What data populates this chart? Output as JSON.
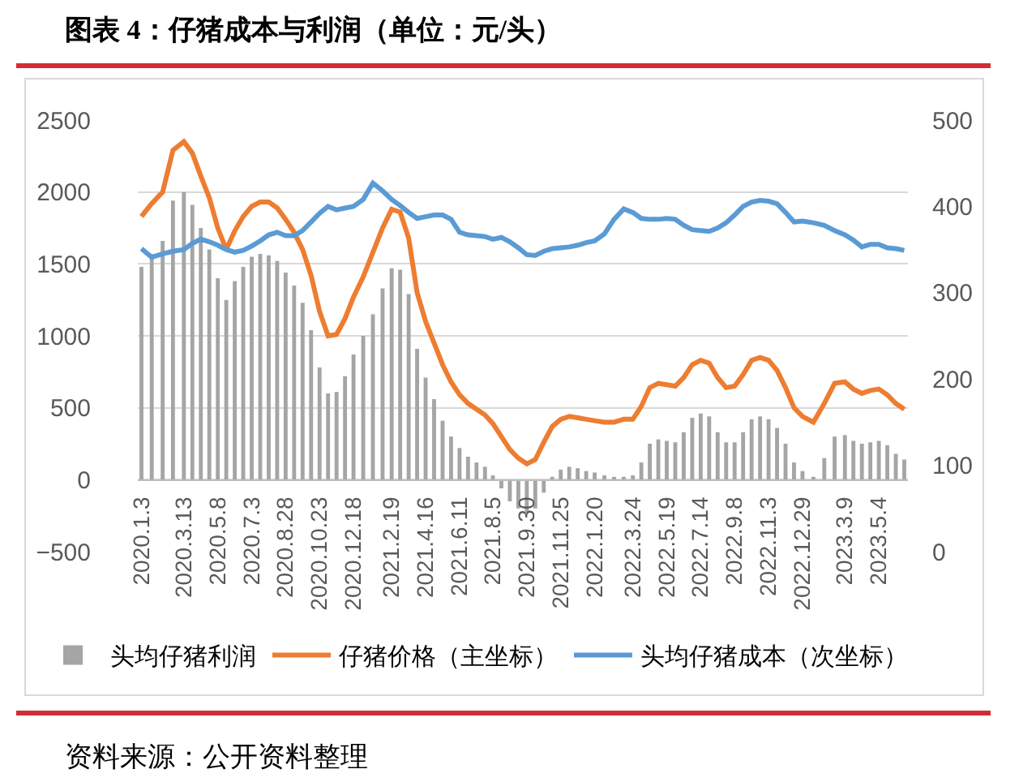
{
  "chart_data": {
    "type": "bar",
    "title": "图表 4：仔猪成本与利润（单位：元/头）",
    "annotations": [
      "资料来源：公开资料整理"
    ],
    "x": [
      "2020-01-03",
      "2020-01-20",
      "2020-02-07",
      "2020-02-24",
      "2020-03-13",
      "2020-03-27",
      "2020-04-10",
      "2020-04-24",
      "2020-05-08",
      "2020-05-22",
      "2020-06-05",
      "2020-06-19",
      "2020-07-03",
      "2020-07-17",
      "2020-07-31",
      "2020-08-14",
      "2020-08-28",
      "2020-09-11",
      "2020-09-25",
      "2020-10-09",
      "2020-10-23",
      "2020-11-06",
      "2020-11-20",
      "2020-12-04",
      "2020-12-18",
      "2021-01-03",
      "2021-01-19",
      "2021-02-04",
      "2021-02-19",
      "2021-03-05",
      "2021-03-19",
      "2021-04-02",
      "2021-04-16",
      "2021-04-30",
      "2021-05-14",
      "2021-05-28",
      "2021-06-11",
      "2021-06-25",
      "2021-07-09",
      "2021-07-23",
      "2021-08-05",
      "2021-08-19",
      "2021-09-02",
      "2021-09-16",
      "2021-09-30",
      "2021-10-14",
      "2021-10-28",
      "2021-11-11",
      "2021-11-25",
      "2021-12-09",
      "2021-12-23",
      "2022-01-06",
      "2022-01-20",
      "2022-02-05",
      "2022-02-21",
      "2022-03-09",
      "2022-03-24",
      "2022-04-07",
      "2022-04-21",
      "2022-05-05",
      "2022-05-19",
      "2022-06-02",
      "2022-06-16",
      "2022-06-30",
      "2022-07-14",
      "2022-07-28",
      "2022-08-11",
      "2022-08-25",
      "2022-09-08",
      "2022-09-22",
      "2022-10-06",
      "2022-10-20",
      "2022-11-03",
      "2022-11-17",
      "2022-12-01",
      "2022-12-15",
      "2022-12-29",
      "2023-01-16",
      "2023-02-03",
      "2023-02-20",
      "2023-03-09",
      "2023-03-23",
      "2023-04-06",
      "2023-04-20",
      "2023-05-04",
      "2023-05-18",
      "2023-06-01",
      "2023-06-15"
    ],
    "series": [
      {
        "name": "头均仔猪利润",
        "type": "bar",
        "color": "#a5a5a5",
        "values": [
          1480,
          1570,
          1660,
          1940,
          2000,
          1910,
          1750,
          1600,
          1400,
          1250,
          1380,
          1480,
          1550,
          1570,
          1560,
          1520,
          1440,
          1350,
          1230,
          1040,
          780,
          600,
          610,
          720,
          870,
          1000,
          1150,
          1330,
          1470,
          1460,
          1290,
          910,
          710,
          560,
          410,
          300,
          220,
          160,
          120,
          90,
          30,
          -60,
          -150,
          -200,
          -230,
          -200,
          -90,
          20,
          70,
          90,
          80,
          60,
          50,
          30,
          20,
          20,
          30,
          120,
          250,
          280,
          270,
          260,
          330,
          430,
          460,
          440,
          330,
          260,
          260,
          330,
          420,
          440,
          420,
          360,
          250,
          120,
          60,
          20,
          150,
          300,
          310,
          270,
          250,
          260,
          270,
          240,
          180,
          140
        ]
      },
      {
        "name": "仔猪价格（主坐标）",
        "type": "line",
        "color": "#ed7d31",
        "values": [
          1830,
          1920,
          2000,
          2290,
          2350,
          2270,
          2110,
          1960,
          1750,
          1600,
          1730,
          1830,
          1900,
          1930,
          1930,
          1890,
          1810,
          1720,
          1600,
          1420,
          1170,
          1000,
          1010,
          1120,
          1270,
          1410,
          1580,
          1750,
          1880,
          1860,
          1680,
          1300,
          1100,
          950,
          800,
          680,
          590,
          530,
          490,
          450,
          390,
          300,
          210,
          150,
          110,
          140,
          260,
          370,
          420,
          440,
          430,
          420,
          410,
          400,
          400,
          420,
          420,
          510,
          640,
          670,
          660,
          650,
          710,
          800,
          830,
          810,
          710,
          640,
          650,
          730,
          830,
          850,
          830,
          760,
          640,
          500,
          440,
          400,
          530,
          670,
          680,
          630,
          600,
          620,
          630,
          590,
          530,
          490
        ]
      },
      {
        "name": "头均仔猪成本（次坐标）",
        "type": "line",
        "color": "#5b9bd5",
        "axis": "y2",
        "values": [
          351,
          341,
          345,
          348,
          350,
          357,
          362,
          359,
          355,
          350,
          347,
          349,
          354,
          360,
          367,
          370,
          366,
          366,
          372,
          382,
          392,
          400,
          396,
          398,
          400,
          408,
          427,
          418,
          408,
          401,
          393,
          386,
          388,
          390,
          390,
          385,
          370,
          367,
          366,
          365,
          362,
          364,
          359,
          352,
          344,
          343,
          348,
          351,
          352,
          353,
          355,
          358,
          360,
          368,
          385,
          397,
          393,
          386,
          385,
          385,
          386,
          385,
          378,
          373,
          372,
          371,
          375,
          381,
          390,
          400,
          405,
          407,
          406,
          403,
          393,
          382,
          383,
          381,
          378,
          372,
          367,
          361,
          353,
          356,
          356,
          352,
          351,
          349
        ]
      }
    ],
    "xlim": [
      "2019-12-28",
      "2023-06-21"
    ],
    "xticks": [
      {
        "value": "2020-01-03",
        "label": "2020.1.3"
      },
      {
        "value": "2020-03-13",
        "label": "2020.3.13"
      },
      {
        "value": "2020-05-08",
        "label": "2020.5.8"
      },
      {
        "value": "2020-07-03",
        "label": "2020.7.3"
      },
      {
        "value": "2020-08-28",
        "label": "2020.8.28"
      },
      {
        "value": "2020-10-23",
        "label": "2020.10.23"
      },
      {
        "value": "2020-12-18",
        "label": "2020.12.18"
      },
      {
        "value": "2021-02-19",
        "label": "2021.2.19"
      },
      {
        "value": "2021-04-16",
        "label": "2021.4.16"
      },
      {
        "value": "2021-06-11",
        "label": "2021.6.11"
      },
      {
        "value": "2021-08-05",
        "label": "2021.8.5"
      },
      {
        "value": "2021-09-30",
        "label": "2021.9.30"
      },
      {
        "value": "2021-11-25",
        "label": "2021.11.25"
      },
      {
        "value": "2022-01-20",
        "label": "2022.1.20"
      },
      {
        "value": "2022-03-24",
        "label": "2022.3.24"
      },
      {
        "value": "2022-05-19",
        "label": "2022.5.19"
      },
      {
        "value": "2022-07-14",
        "label": "2022.7.14"
      },
      {
        "value": "2022-09-08",
        "label": "2022.9.8"
      },
      {
        "value": "2022-11-03",
        "label": "2022.11.3"
      },
      {
        "value": "2022-12-29",
        "label": "2022.12.29"
      },
      {
        "value": "2023-03-09",
        "label": "2023.3.9"
      },
      {
        "value": "2023-05-04",
        "label": "2023.5.4"
      }
    ],
    "ylim": [
      -500,
      2500
    ],
    "yticks": [
      -500,
      0,
      500,
      1000,
      1500,
      2000,
      2500
    ],
    "y2lim": [
      0,
      500
    ],
    "y2ticks": [
      0,
      100,
      200,
      300,
      400,
      500
    ],
    "grid": "y",
    "legend": "bottom"
  }
}
